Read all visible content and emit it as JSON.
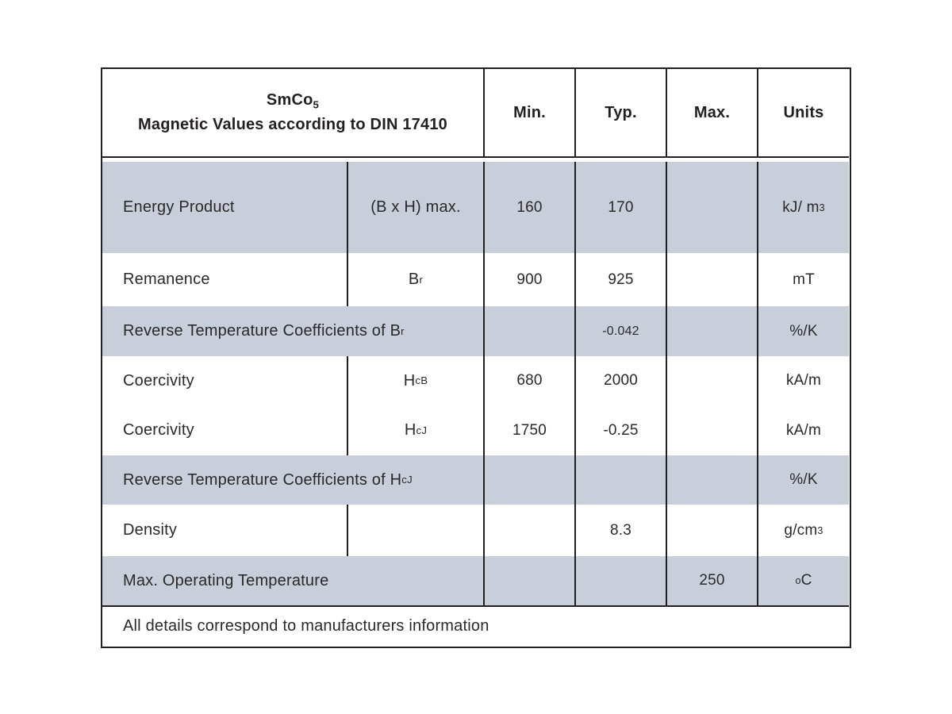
{
  "table": {
    "title_base": "SmCo",
    "title_sub": "5",
    "title_line2": "Magnetic Values according to DIN 17410",
    "columns": {
      "min": "Min.",
      "typ": "Typ.",
      "max": "Max.",
      "units": "Units"
    },
    "rows": [
      {
        "name": "Energy Product",
        "symbol": "(B x H) max.",
        "min": "160",
        "typ": "170",
        "max": "",
        "unit": "kJ/ m",
        "unit_sup": "3"
      },
      {
        "name": "Remanence",
        "symbol": "B",
        "symbol_sub": "r",
        "min": "900",
        "typ": "925",
        "max": "",
        "unit": "mT"
      },
      {
        "name": "Reverse Temperature Coefficients of B",
        "name_sub": "r",
        "min": "",
        "typ": "-0.042",
        "max": "",
        "unit": "%/K"
      },
      {
        "name": "Coercivity",
        "symbol": "H",
        "symbol_sub": "cB",
        "min": "680",
        "typ": "2000",
        "max": "",
        "unit": "kA/m"
      },
      {
        "name": "Coercivity",
        "symbol": "H",
        "symbol_sub": "cJ",
        "min": "1750",
        "typ": "-0.25",
        "max": "",
        "unit": "kA/m"
      },
      {
        "name": "Reverse Temperature Coefficients of H",
        "name_sub": "cJ",
        "min": "",
        "typ": "",
        "max": "",
        "unit": "%/K"
      },
      {
        "name": "Density",
        "symbol": "",
        "min": "",
        "typ": "8.3",
        "max": "",
        "unit": "g/cm",
        "unit_sup": "3"
      },
      {
        "name": "Max. Operating Temperature",
        "min": "",
        "typ": "",
        "max": "250",
        "unit_presup": "o",
        "unit": "C"
      }
    ],
    "footer": "All details correspond to manufacturers information",
    "colors": {
      "row_gray": "#c8cfda",
      "border": "#231f20",
      "text": "#2b2829"
    }
  }
}
